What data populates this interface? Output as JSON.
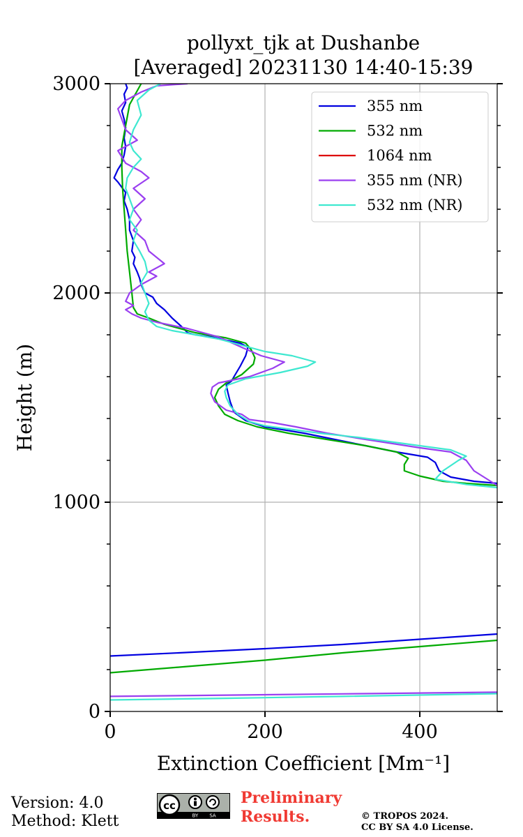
{
  "chart_data": {
    "type": "line",
    "title": [
      "pollyxt_tjk at Dushanbe",
      "[Averaged] 20231130 14:40-15:39"
    ],
    "xlabel": "Extinction Coefficient [Mm⁻¹]",
    "ylabel": "Height (m)",
    "xlim": [
      0,
      500
    ],
    "ylim": [
      0,
      3000
    ],
    "xticks": [
      0,
      200,
      400
    ],
    "yticks": [
      0,
      1000,
      2000,
      3000
    ],
    "grid": true,
    "legend_position": "top-right",
    "series": [
      {
        "name": "355 nm",
        "color": "#0000e0",
        "segments": [
          [
            [
              0,
              265
            ],
            [
              100,
              282
            ],
            [
              200,
              300
            ],
            [
              300,
              320
            ],
            [
              400,
              345
            ],
            [
              500,
              370
            ]
          ],
          [
            [
              500,
              1090
            ],
            [
              470,
              1100
            ],
            [
              440,
              1120
            ],
            [
              425,
              1150
            ],
            [
              420,
              1190
            ],
            [
              410,
              1215
            ],
            [
              370,
              1240
            ],
            [
              330,
              1270
            ],
            [
              290,
              1300
            ],
            [
              250,
              1330
            ],
            [
              200,
              1360
            ],
            [
              175,
              1390
            ],
            [
              160,
              1430
            ],
            [
              155,
              1480
            ],
            [
              152,
              1525
            ],
            [
              150,
              1560
            ],
            [
              157,
              1580
            ],
            [
              160,
              1600
            ],
            [
              168,
              1650
            ],
            [
              175,
              1700
            ],
            [
              178,
              1740
            ],
            [
              168,
              1760
            ],
            [
              130,
              1790
            ],
            [
              110,
              1800
            ],
            [
              100,
              1810
            ],
            [
              92,
              1840
            ],
            [
              80,
              1880
            ],
            [
              70,
              1920
            ],
            [
              60,
              1950
            ],
            [
              55,
              1980
            ],
            [
              45,
              2000
            ],
            [
              40,
              2040
            ],
            [
              38,
              2070
            ],
            [
              35,
              2100
            ],
            [
              30,
              2140
            ],
            [
              32,
              2170
            ],
            [
              28,
              2200
            ],
            [
              30,
              2250
            ],
            [
              25,
              2300
            ],
            [
              25,
              2350
            ],
            [
              22,
              2400
            ],
            [
              18,
              2440
            ],
            [
              20,
              2480
            ],
            [
              10,
              2530
            ],
            [
              5,
              2550
            ],
            [
              10,
              2590
            ],
            [
              15,
              2620
            ],
            [
              18,
              2660
            ],
            [
              20,
              2700
            ],
            [
              18,
              2740
            ],
            [
              20,
              2790
            ],
            [
              18,
              2830
            ],
            [
              15,
              2870
            ],
            [
              20,
              2910
            ],
            [
              18,
              2950
            ],
            [
              22,
              2980
            ],
            [
              20,
              3000
            ]
          ]
        ]
      },
      {
        "name": "532 nm",
        "color": "#00aa00",
        "segments": [
          [
            [
              0,
              185
            ],
            [
              100,
              215
            ],
            [
              200,
              245
            ],
            [
              300,
              280
            ],
            [
              400,
              310
            ],
            [
              500,
              340
            ]
          ],
          [
            [
              500,
              1080
            ],
            [
              460,
              1090
            ],
            [
              430,
              1100
            ],
            [
              400,
              1125
            ],
            [
              380,
              1150
            ],
            [
              380,
              1180
            ],
            [
              385,
              1210
            ],
            [
              370,
              1240
            ],
            [
              330,
              1270
            ],
            [
              280,
              1300
            ],
            [
              230,
              1330
            ],
            [
              190,
              1360
            ],
            [
              165,
              1390
            ],
            [
              148,
              1420
            ],
            [
              140,
              1460
            ],
            [
              135,
              1500
            ],
            [
              140,
              1540
            ],
            [
              150,
              1570
            ],
            [
              170,
              1610
            ],
            [
              185,
              1660
            ],
            [
              187,
              1690
            ],
            [
              182,
              1730
            ],
            [
              175,
              1760
            ],
            [
              150,
              1785
            ],
            [
              110,
              1810
            ],
            [
              70,
              1850
            ],
            [
              50,
              1880
            ],
            [
              35,
              1900
            ],
            [
              30,
              1930
            ],
            [
              28,
              2000
            ],
            [
              25,
              2100
            ],
            [
              22,
              2200
            ],
            [
              20,
              2300
            ],
            [
              18,
              2400
            ],
            [
              16,
              2500
            ],
            [
              15,
              2600
            ],
            [
              15,
              2700
            ],
            [
              20,
              2800
            ],
            [
              25,
              2900
            ],
            [
              40,
              3000
            ]
          ]
        ]
      },
      {
        "name": "1064 nm",
        "color": "#dd0000",
        "segments": []
      },
      {
        "name": "355 nm (NR)",
        "color": "#9a3ff0",
        "segments": [
          [
            [
              0,
              72
            ],
            [
              150,
              78
            ],
            [
              300,
              84
            ],
            [
              500,
              92
            ]
          ],
          [
            [
              500,
              1080
            ],
            [
              470,
              1150
            ],
            [
              460,
              1200
            ],
            [
              440,
              1240
            ],
            [
              400,
              1260
            ],
            [
              330,
              1300
            ],
            [
              280,
              1330
            ],
            [
              240,
              1360
            ],
            [
              210,
              1380
            ],
            [
              180,
              1395
            ],
            [
              170,
              1420
            ],
            [
              150,
              1440
            ],
            [
              135,
              1480
            ],
            [
              130,
              1520
            ],
            [
              132,
              1550
            ],
            [
              140,
              1570
            ],
            [
              180,
              1600
            ],
            [
              210,
              1640
            ],
            [
              225,
              1670
            ],
            [
              195,
              1700
            ],
            [
              170,
              1740
            ],
            [
              140,
              1790
            ],
            [
              100,
              1830
            ],
            [
              60,
              1860
            ],
            [
              40,
              1880
            ],
            [
              28,
              1900
            ],
            [
              20,
              1920
            ],
            [
              30,
              1940
            ],
            [
              20,
              1960
            ],
            [
              25,
              2000
            ],
            [
              40,
              2040
            ],
            [
              60,
              2080
            ],
            [
              50,
              2100
            ],
            [
              70,
              2140
            ],
            [
              60,
              2170
            ],
            [
              50,
              2200
            ],
            [
              45,
              2250
            ],
            [
              30,
              2300
            ],
            [
              40,
              2350
            ],
            [
              30,
              2400
            ],
            [
              45,
              2450
            ],
            [
              30,
              2500
            ],
            [
              50,
              2550
            ],
            [
              40,
              2580
            ],
            [
              20,
              2620
            ],
            [
              10,
              2680
            ],
            [
              35,
              2730
            ],
            [
              20,
              2780
            ],
            [
              15,
              2830
            ],
            [
              10,
              2880
            ],
            [
              20,
              2920
            ],
            [
              40,
              2960
            ],
            [
              60,
              2990
            ],
            [
              100,
              3000
            ]
          ]
        ]
      },
      {
        "name": "532 nm (NR)",
        "color": "#3ee8d0",
        "segments": [
          [
            [
              0,
              55
            ],
            [
              150,
              63
            ],
            [
              300,
              72
            ],
            [
              500,
              85
            ]
          ],
          [
            [
              500,
              1070
            ],
            [
              460,
              1085
            ],
            [
              420,
              1110
            ],
            [
              430,
              1150
            ],
            [
              450,
              1200
            ],
            [
              460,
              1220
            ],
            [
              440,
              1250
            ],
            [
              380,
              1280
            ],
            [
              320,
              1310
            ],
            [
              270,
              1330
            ],
            [
              230,
              1350
            ],
            [
              200,
              1365
            ],
            [
              180,
              1385
            ],
            [
              165,
              1420
            ],
            [
              155,
              1460
            ],
            [
              150,
              1500
            ],
            [
              148,
              1530
            ],
            [
              152,
              1560
            ],
            [
              175,
              1590
            ],
            [
              220,
              1620
            ],
            [
              255,
              1650
            ],
            [
              265,
              1670
            ],
            [
              235,
              1700
            ],
            [
              200,
              1720
            ],
            [
              170,
              1750
            ],
            [
              140,
              1780
            ],
            [
              110,
              1800
            ],
            [
              80,
              1820
            ],
            [
              60,
              1840
            ],
            [
              50,
              1870
            ],
            [
              45,
              1910
            ],
            [
              50,
              1950
            ],
            [
              45,
              2000
            ],
            [
              40,
              2050
            ],
            [
              48,
              2100
            ],
            [
              45,
              2150
            ],
            [
              38,
              2200
            ],
            [
              30,
              2250
            ],
            [
              35,
              2300
            ],
            [
              25,
              2350
            ],
            [
              30,
              2400
            ],
            [
              25,
              2450
            ],
            [
              20,
              2500
            ],
            [
              22,
              2550
            ],
            [
              30,
              2600
            ],
            [
              40,
              2640
            ],
            [
              30,
              2680
            ],
            [
              25,
              2720
            ],
            [
              30,
              2780
            ],
            [
              40,
              2850
            ],
            [
              35,
              2920
            ],
            [
              50,
              2970
            ],
            [
              65,
              3000
            ]
          ]
        ]
      }
    ]
  },
  "footer": {
    "version": "Version: 4.0",
    "method": "Method: Klett",
    "preliminary_1": "Preliminary",
    "preliminary_2": "Results.",
    "copyright_1": "© TROPOS 2024.",
    "copyright_2": "CC BY SA 4.0 License.",
    "license_icon_text": "cc",
    "license_by": "BY",
    "license_sa": "SA"
  }
}
